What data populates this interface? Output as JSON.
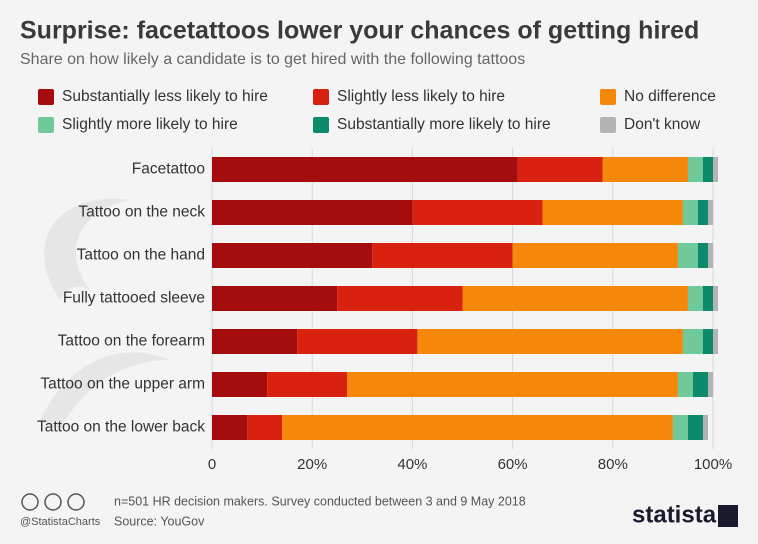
{
  "chart_data": {
    "type": "stacked-bar-horizontal",
    "title": "Surprise: facetattoos lower your chances of getting hired",
    "subtitle": "Share on how likely a candidate is to get hired with the following tattoos",
    "categories": [
      "Facetattoo",
      "Tattoo on the neck",
      "Tattoo on the hand",
      "Fully tattooed sleeve",
      "Tattoo on the forearm",
      "Tattoo on the upper arm",
      "Tattoo on the lower back"
    ],
    "series": [
      {
        "name": "Substantially less likely to hire",
        "color": "#a30d0d",
        "values": [
          61,
          40,
          32,
          25,
          17,
          11,
          7
        ]
      },
      {
        "name": "Slightly less likely to hire",
        "color": "#d92110",
        "values": [
          17,
          26,
          28,
          25,
          24,
          16,
          7
        ]
      },
      {
        "name": "No difference",
        "color": "#f5870a",
        "values": [
          17,
          28,
          33,
          45,
          53,
          66,
          78
        ]
      },
      {
        "name": "Slightly more likely to hire",
        "color": "#6fc99b",
        "values": [
          3,
          3,
          4,
          3,
          4,
          3,
          3
        ]
      },
      {
        "name": "Substantially more likely to hire",
        "color": "#0d8a6c",
        "values": [
          2,
          2,
          2,
          2,
          2,
          3,
          3
        ]
      },
      {
        "name": "Don't know",
        "color": "#b3b3b3",
        "values": [
          1,
          1,
          1,
          1,
          1,
          1,
          1
        ]
      }
    ],
    "xlim": [
      0,
      100
    ],
    "xticks": [
      0,
      {
        "value": 20,
        "label": "20%"
      },
      {
        "value": 40,
        "label": "40%"
      },
      {
        "value": 60,
        "label": "60%"
      },
      {
        "value": 80,
        "label": "80%"
      },
      {
        "value": 100,
        "label": "100%"
      }
    ],
    "grid": true,
    "credit": "@StatistaCharts",
    "note": "n=501 HR decision makers. Survey conducted between 3 and 9 May 2018",
    "source": "Source: YouGov",
    "brand": "statista"
  }
}
